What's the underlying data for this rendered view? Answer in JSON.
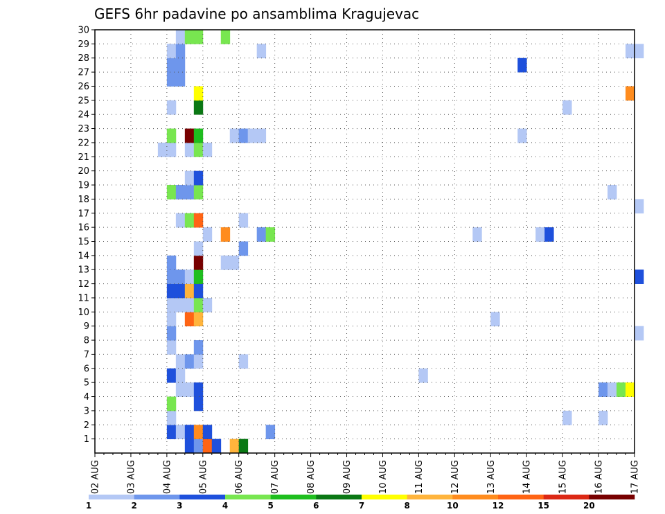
{
  "chart_data": {
    "type": "heatmap",
    "title": "GEFS 6hr padavine po ansamblima Kragujevac",
    "x_tick_labels": [
      "02 AUG",
      "03 AUG",
      "04 AUG",
      "05 AUG",
      "06 AUG",
      "07 AUG",
      "08 AUG",
      "09 AUG",
      "10 AUG",
      "11 AUG",
      "12 AUG",
      "13 AUG",
      "14 AUG",
      "15 AUG",
      "16 AUG",
      "17 AUG"
    ],
    "y_tick_labels": [
      "1",
      "2",
      "3",
      "4",
      "5",
      "6",
      "7",
      "8",
      "9",
      "10",
      "11",
      "12",
      "13",
      "14",
      "15",
      "16",
      "17",
      "18",
      "19",
      "20",
      "21",
      "22",
      "23",
      "24",
      "25",
      "26",
      "27",
      "28",
      "29",
      "30"
    ],
    "xlim_days": [
      0,
      15
    ],
    "step_hours": 6,
    "ylim": [
      0,
      30
    ],
    "grid": "dotted",
    "legend_placement": "bottom",
    "color_bins": [
      {
        "min": 1,
        "max": 2,
        "color": "#b4c8f5"
      },
      {
        "min": 2,
        "max": 3,
        "color": "#6e96ec"
      },
      {
        "min": 3,
        "max": 4,
        "color": "#1e50dc"
      },
      {
        "min": 4,
        "max": 5,
        "color": "#78e650"
      },
      {
        "min": 5,
        "max": 6,
        "color": "#1ebe1e"
      },
      {
        "min": 6,
        "max": 7,
        "color": "#0a7814"
      },
      {
        "min": 7,
        "max": 8,
        "color": "#ffff00"
      },
      {
        "min": 8,
        "max": 10,
        "color": "#ffb43c"
      },
      {
        "min": 10,
        "max": 12,
        "color": "#ff8c1e"
      },
      {
        "min": 12,
        "max": 15,
        "color": "#ff6414"
      },
      {
        "min": 15,
        "max": 20,
        "color": "#dc2814"
      },
      {
        "min": 20,
        "max": 50,
        "color": "#780000"
      }
    ],
    "legend_labels": [
      "1",
      "2",
      "3",
      "4",
      "5",
      "6",
      "7",
      "8",
      "10",
      "12",
      "15",
      "20"
    ],
    "cells": [
      {
        "member": 0,
        "day": 2.5,
        "value": 3.5
      },
      {
        "member": 0,
        "day": 2.75,
        "value": 2.5
      },
      {
        "member": 0,
        "day": 3.0,
        "value": 12
      },
      {
        "member": 0,
        "day": 3.25,
        "value": 3.5
      },
      {
        "member": 0,
        "day": 3.75,
        "value": 9
      },
      {
        "member": 0,
        "day": 4.0,
        "value": 6.5
      },
      {
        "member": 1,
        "day": 2.0,
        "value": 3.5
      },
      {
        "member": 1,
        "day": 2.25,
        "value": 1.5
      },
      {
        "member": 1,
        "day": 2.5,
        "value": 3.5
      },
      {
        "member": 1,
        "day": 2.75,
        "value": 10
      },
      {
        "member": 1,
        "day": 3.0,
        "value": 3.5
      },
      {
        "member": 1,
        "day": 4.75,
        "value": 2.5
      },
      {
        "member": 2,
        "day": 2.0,
        "value": 1.5
      },
      {
        "member": 2,
        "day": 13.0,
        "value": 1.5
      },
      {
        "member": 2,
        "day": 14.0,
        "value": 1.5
      },
      {
        "member": 3,
        "day": 2.0,
        "value": 4.5
      },
      {
        "member": 3,
        "day": 2.75,
        "value": 3.5
      },
      {
        "member": 4,
        "day": 2.25,
        "value": 1.5
      },
      {
        "member": 4,
        "day": 2.5,
        "value": 1.5
      },
      {
        "member": 4,
        "day": 2.75,
        "value": 3.5
      },
      {
        "member": 4,
        "day": 14.0,
        "value": 2.5
      },
      {
        "member": 4,
        "day": 14.25,
        "value": 1.5
      },
      {
        "member": 4,
        "day": 14.5,
        "value": 4.5
      },
      {
        "member": 4,
        "day": 14.75,
        "value": 7.5
      },
      {
        "member": 5,
        "day": 2.0,
        "value": 3.5
      },
      {
        "member": 5,
        "day": 2.25,
        "value": 1.5
      },
      {
        "member": 5,
        "day": 9.0,
        "value": 1.5
      },
      {
        "member": 6,
        "day": 2.25,
        "value": 1.5
      },
      {
        "member": 6,
        "day": 2.5,
        "value": 2.5
      },
      {
        "member": 6,
        "day": 2.75,
        "value": 1.5
      },
      {
        "member": 6,
        "day": 4.0,
        "value": 1.5
      },
      {
        "member": 7,
        "day": 2.0,
        "value": 1.5
      },
      {
        "member": 7,
        "day": 2.75,
        "value": 2.5
      },
      {
        "member": 8,
        "day": 2.0,
        "value": 2.5
      },
      {
        "member": 8,
        "day": 15.0,
        "value": 1.5
      },
      {
        "member": 9,
        "day": 2.0,
        "value": 1.5
      },
      {
        "member": 9,
        "day": 2.5,
        "value": 13
      },
      {
        "member": 9,
        "day": 2.75,
        "value": 9
      },
      {
        "member": 9,
        "day": 11.0,
        "value": 1.5
      },
      {
        "member": 10,
        "day": 2.0,
        "value": 1.5
      },
      {
        "member": 10,
        "day": 2.25,
        "value": 1.5
      },
      {
        "member": 10,
        "day": 2.5,
        "value": 1.5
      },
      {
        "member": 10,
        "day": 2.75,
        "value": 4.5
      },
      {
        "member": 10,
        "day": 3.0,
        "value": 1.5
      },
      {
        "member": 11,
        "day": 2.0,
        "value": 3.5
      },
      {
        "member": 11,
        "day": 2.25,
        "value": 3.5
      },
      {
        "member": 11,
        "day": 2.5,
        "value": 9
      },
      {
        "member": 11,
        "day": 2.75,
        "value": 3.5
      },
      {
        "member": 12,
        "day": 2.0,
        "value": 2.5
      },
      {
        "member": 12,
        "day": 2.25,
        "value": 2.5
      },
      {
        "member": 12,
        "day": 2.5,
        "value": 1.5
      },
      {
        "member": 12,
        "day": 2.75,
        "value": 5.5
      },
      {
        "member": 12,
        "day": 15.0,
        "value": 3.5
      },
      {
        "member": 13,
        "day": 2.0,
        "value": 2.5
      },
      {
        "member": 13,
        "day": 2.75,
        "value": 25
      },
      {
        "member": 13,
        "day": 3.5,
        "value": 1.5
      },
      {
        "member": 13,
        "day": 3.75,
        "value": 1.5
      },
      {
        "member": 14,
        "day": 2.75,
        "value": 1.5
      },
      {
        "member": 14,
        "day": 4.0,
        "value": 2.5
      },
      {
        "member": 15,
        "day": 3.0,
        "value": 1.5
      },
      {
        "member": 15,
        "day": 3.5,
        "value": 11
      },
      {
        "member": 15,
        "day": 4.5,
        "value": 2.5
      },
      {
        "member": 15,
        "day": 4.75,
        "value": 4.5
      },
      {
        "member": 15,
        "day": 10.5,
        "value": 1.5
      },
      {
        "member": 15,
        "day": 12.25,
        "value": 1.5
      },
      {
        "member": 15,
        "day": 12.5,
        "value": 3.5
      },
      {
        "member": 16,
        "day": 2.25,
        "value": 1.5
      },
      {
        "member": 16,
        "day": 2.5,
        "value": 4.5
      },
      {
        "member": 16,
        "day": 2.75,
        "value": 13
      },
      {
        "member": 16,
        "day": 4.0,
        "value": 1.5
      },
      {
        "member": 17,
        "day": 15.0,
        "value": 1.5
      },
      {
        "member": 18,
        "day": 2.0,
        "value": 4.5
      },
      {
        "member": 18,
        "day": 2.25,
        "value": 2.5
      },
      {
        "member": 18,
        "day": 2.5,
        "value": 2.5
      },
      {
        "member": 18,
        "day": 2.75,
        "value": 4.5
      },
      {
        "member": 18,
        "day": 14.25,
        "value": 1.5
      },
      {
        "member": 19,
        "day": 2.5,
        "value": 1.5
      },
      {
        "member": 19,
        "day": 2.75,
        "value": 3.5
      },
      {
        "member": 21,
        "day": 1.75,
        "value": 1.5
      },
      {
        "member": 21,
        "day": 2.0,
        "value": 1.5
      },
      {
        "member": 21,
        "day": 2.5,
        "value": 1.5
      },
      {
        "member": 21,
        "day": 2.75,
        "value": 4.5
      },
      {
        "member": 21,
        "day": 3.0,
        "value": 1.5
      },
      {
        "member": 22,
        "day": 2.0,
        "value": 4.5
      },
      {
        "member": 22,
        "day": 2.5,
        "value": 25
      },
      {
        "member": 22,
        "day": 2.75,
        "value": 5.5
      },
      {
        "member": 22,
        "day": 3.75,
        "value": 1.5
      },
      {
        "member": 22,
        "day": 4.0,
        "value": 2.5
      },
      {
        "member": 22,
        "day": 4.25,
        "value": 1.5
      },
      {
        "member": 22,
        "day": 4.5,
        "value": 1.5
      },
      {
        "member": 22,
        "day": 11.75,
        "value": 1.5
      },
      {
        "member": 24,
        "day": 2.0,
        "value": 1.5
      },
      {
        "member": 24,
        "day": 2.75,
        "value": 6.5
      },
      {
        "member": 24,
        "day": 13.0,
        "value": 1.5
      },
      {
        "member": 25,
        "day": 2.75,
        "value": 7.5
      },
      {
        "member": 25,
        "day": 14.75,
        "value": 11
      },
      {
        "member": 26,
        "day": 2.0,
        "value": 2.5
      },
      {
        "member": 26,
        "day": 2.25,
        "value": 2.5
      },
      {
        "member": 27,
        "day": 2.0,
        "value": 2.5
      },
      {
        "member": 27,
        "day": 2.25,
        "value": 2.5
      },
      {
        "member": 27,
        "day": 11.75,
        "value": 3.5
      },
      {
        "member": 28,
        "day": 2.0,
        "value": 1.5
      },
      {
        "member": 28,
        "day": 2.25,
        "value": 2.5
      },
      {
        "member": 28,
        "day": 4.5,
        "value": 1.5
      },
      {
        "member": 28,
        "day": 14.75,
        "value": 1.5
      },
      {
        "member": 28,
        "day": 15.0,
        "value": 1.5
      },
      {
        "member": 29,
        "day": 2.25,
        "value": 1.5
      },
      {
        "member": 29,
        "day": 2.5,
        "value": 4.5
      },
      {
        "member": 29,
        "day": 2.75,
        "value": 4.5
      },
      {
        "member": 29,
        "day": 3.5,
        "value": 4.5
      }
    ]
  }
}
